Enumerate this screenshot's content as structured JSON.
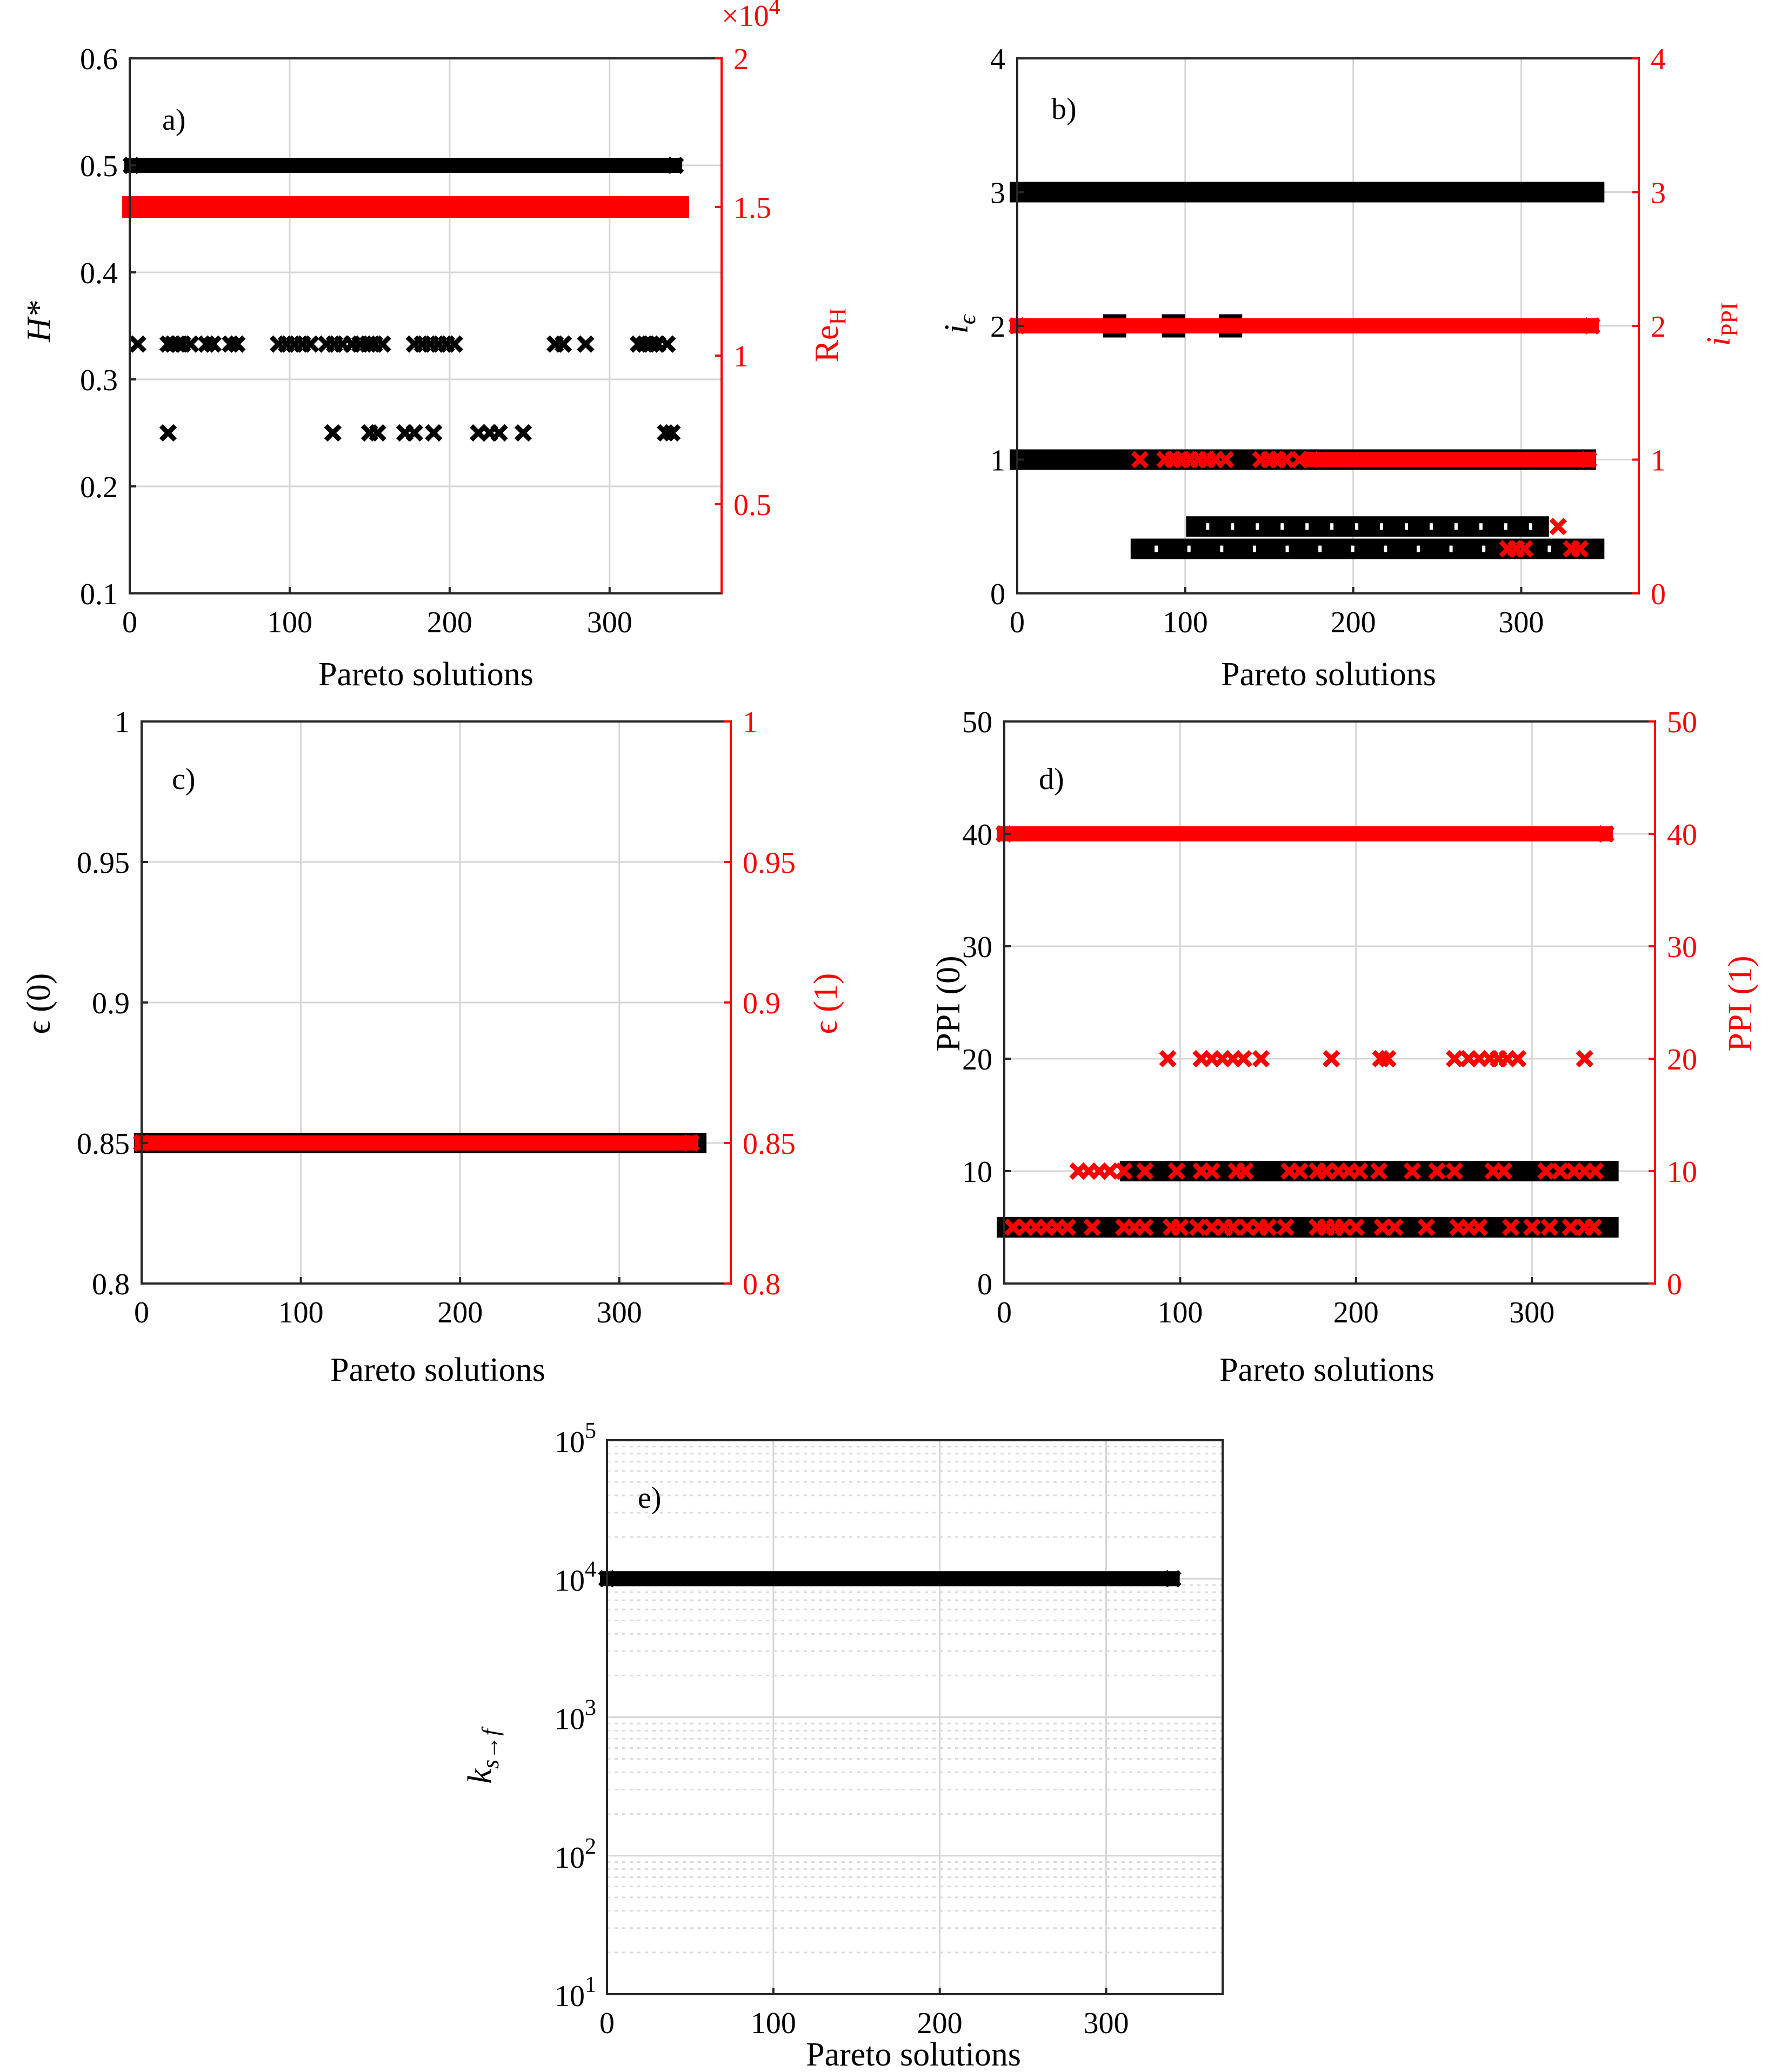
{
  "colors": {
    "primary": "#000000",
    "secondary": "#ff0000",
    "axis": "#262626",
    "grid": "#d6d6d6"
  },
  "figure": {
    "xlabel": "Pareto solutions"
  },
  "chart_data": [
    {
      "id": "a",
      "panel_label": "a)",
      "type": "scatter",
      "xlabel": "Pareto solutions",
      "xlim": [
        0,
        370
      ],
      "xticks": [
        "0",
        "100",
        "200",
        "300"
      ],
      "left_axis": {
        "label": "H*",
        "ylim": [
          0.1,
          0.6
        ],
        "ticks": [
          "0.1",
          "0.2",
          "0.3",
          "0.4",
          "0.5",
          "0.6"
        ]
      },
      "right_axis": {
        "label": "Re",
        "label_sub": "H",
        "ylim": [
          0.2,
          2
        ],
        "ticks": [
          "0.5",
          "1",
          "1.5",
          "2"
        ],
        "exponent_base": "×10",
        "exponent_power": "4"
      },
      "series": [
        {
          "name": "H*",
          "axis": "left",
          "marker": "x",
          "color": "black",
          "bands": [
            {
              "y": 0.5,
              "x0": 1,
              "x1": 341
            }
          ],
          "points": [
            {
              "x": 5,
              "y": 0.333
            },
            {
              "x": 24,
              "y": 0.333
            },
            {
              "x": 27,
              "y": 0.333
            },
            {
              "x": 30,
              "y": 0.333
            },
            {
              "x": 33,
              "y": 0.333
            },
            {
              "x": 38,
              "y": 0.333
            },
            {
              "x": 48,
              "y": 0.333
            },
            {
              "x": 52,
              "y": 0.333
            },
            {
              "x": 63,
              "y": 0.333
            },
            {
              "x": 67,
              "y": 0.333
            },
            {
              "x": 93,
              "y": 0.333
            },
            {
              "x": 98,
              "y": 0.333
            },
            {
              "x": 103,
              "y": 0.333
            },
            {
              "x": 108,
              "y": 0.333
            },
            {
              "x": 113,
              "y": 0.333
            },
            {
              "x": 123,
              "y": 0.333
            },
            {
              "x": 128,
              "y": 0.333
            },
            {
              "x": 133,
              "y": 0.333
            },
            {
              "x": 139,
              "y": 0.333
            },
            {
              "x": 144,
              "y": 0.333
            },
            {
              "x": 149,
              "y": 0.333
            },
            {
              "x": 153,
              "y": 0.333
            },
            {
              "x": 158,
              "y": 0.333
            },
            {
              "x": 178,
              "y": 0.333
            },
            {
              "x": 183,
              "y": 0.333
            },
            {
              "x": 188,
              "y": 0.333
            },
            {
              "x": 193,
              "y": 0.333
            },
            {
              "x": 198,
              "y": 0.333
            },
            {
              "x": 203,
              "y": 0.333
            },
            {
              "x": 266,
              "y": 0.333
            },
            {
              "x": 271,
              "y": 0.333
            },
            {
              "x": 285,
              "y": 0.333
            },
            {
              "x": 318,
              "y": 0.333
            },
            {
              "x": 322,
              "y": 0.333
            },
            {
              "x": 326,
              "y": 0.333
            },
            {
              "x": 330,
              "y": 0.333
            },
            {
              "x": 336,
              "y": 0.333
            },
            {
              "x": 24,
              "y": 0.25
            },
            {
              "x": 127,
              "y": 0.25
            },
            {
              "x": 150,
              "y": 0.25
            },
            {
              "x": 155,
              "y": 0.25
            },
            {
              "x": 172,
              "y": 0.25
            },
            {
              "x": 178,
              "y": 0.25
            },
            {
              "x": 190,
              "y": 0.25
            },
            {
              "x": 218,
              "y": 0.25
            },
            {
              "x": 225,
              "y": 0.25
            },
            {
              "x": 231,
              "y": 0.25
            },
            {
              "x": 246,
              "y": 0.25
            },
            {
              "x": 335,
              "y": 0.25
            },
            {
              "x": 339,
              "y": 0.25
            }
          ]
        },
        {
          "name": "Re_H",
          "axis": "right",
          "marker": "square",
          "color": "red",
          "bands": [
            {
              "y": 1.5,
              "x0": 0,
              "x1": 345
            }
          ],
          "points": []
        }
      ]
    },
    {
      "id": "b",
      "panel_label": "b)",
      "type": "scatter",
      "xlabel": "Pareto solutions",
      "xlim": [
        0,
        370
      ],
      "xticks": [
        "0",
        "100",
        "200",
        "300"
      ],
      "left_axis": {
        "label": "i",
        "label_sub": "ϵ",
        "ylim": [
          0,
          4
        ],
        "ticks": [
          "0",
          "1",
          "2",
          "3",
          "4"
        ]
      },
      "right_axis": {
        "label": "i",
        "label_sub": "PPI",
        "ylim": [
          0,
          4
        ],
        "ticks": [
          "0",
          "1",
          "2",
          "3",
          "4"
        ]
      },
      "series": [
        {
          "name": "i_eps",
          "axis": "left",
          "marker": "square",
          "color": "black",
          "bands": [
            {
              "y": 3,
              "x0": 0,
              "x1": 345
            },
            {
              "y": 1,
              "x0": 0,
              "x1": 340
            },
            {
              "y": 0.5,
              "x0": 105,
              "x1": 312
            },
            {
              "y": 0.333,
              "x0": 72,
              "x1": 345
            }
          ],
          "points": [
            {
              "x": 58,
              "y": 2
            },
            {
              "x": 93,
              "y": 2
            },
            {
              "x": 127,
              "y": 2
            }
          ]
        },
        {
          "name": "i_PPI",
          "axis": "right",
          "marker": "x",
          "color": "red",
          "bands": [
            {
              "y": 2,
              "x0": 0,
              "x1": 342
            },
            {
              "y": 1,
              "x0": 175,
              "x1": 340
            }
          ],
          "points": [
            {
              "x": 73,
              "y": 1
            },
            {
              "x": 88,
              "y": 1
            },
            {
              "x": 93,
              "y": 1
            },
            {
              "x": 98,
              "y": 1
            },
            {
              "x": 103,
              "y": 1
            },
            {
              "x": 108,
              "y": 1
            },
            {
              "x": 113,
              "y": 1
            },
            {
              "x": 118,
              "y": 1
            },
            {
              "x": 124,
              "y": 1
            },
            {
              "x": 145,
              "y": 1
            },
            {
              "x": 150,
              "y": 1
            },
            {
              "x": 155,
              "y": 1
            },
            {
              "x": 160,
              "y": 1
            },
            {
              "x": 168,
              "y": 1
            },
            {
              "x": 292,
              "y": 0.333
            },
            {
              "x": 297,
              "y": 0.333
            },
            {
              "x": 302,
              "y": 0.333
            },
            {
              "x": 330,
              "y": 0.333
            },
            {
              "x": 335,
              "y": 0.333
            },
            {
              "x": 322,
              "y": 0.5
            }
          ]
        }
      ]
    },
    {
      "id": "c",
      "panel_label": "c)",
      "type": "scatter",
      "xlabel": "Pareto solutions",
      "xlim": [
        0,
        370
      ],
      "xticks": [
        "0",
        "100",
        "200",
        "300"
      ],
      "left_axis": {
        "label": "ϵ (0)",
        "ylim": [
          0.8,
          1
        ],
        "ticks": [
          "0.8",
          "0.85",
          "0.9",
          "0.95",
          "1"
        ]
      },
      "right_axis": {
        "label": "ϵ (1)",
        "ylim": [
          0.8,
          1
        ],
        "ticks": [
          "0.8",
          "0.85",
          "0.9",
          "0.95",
          "1"
        ]
      },
      "series": [
        {
          "name": "eps0",
          "axis": "left",
          "marker": "square",
          "color": "black",
          "bands": [
            {
              "y": 0.85,
              "x0": 0,
              "x1": 350
            }
          ],
          "points": []
        },
        {
          "name": "eps1",
          "axis": "right",
          "marker": "x",
          "color": "red",
          "bands": [
            {
              "y": 0.85,
              "x0": 0,
              "x1": 345
            }
          ],
          "points": []
        }
      ]
    },
    {
      "id": "d",
      "panel_label": "d)",
      "type": "scatter",
      "xlabel": "Pareto solutions",
      "xlim": [
        0,
        370
      ],
      "xticks": [
        "0",
        "100",
        "200",
        "300"
      ],
      "left_axis": {
        "label": "PPI (0)",
        "ylim": [
          0,
          50
        ],
        "ticks": [
          "0",
          "10",
          "20",
          "30",
          "40",
          "50"
        ]
      },
      "right_axis": {
        "label": "PPI (1)",
        "ylim": [
          0,
          50
        ],
        "ticks": [
          "0",
          "10",
          "20",
          "30",
          "40",
          "50"
        ]
      },
      "series": [
        {
          "name": "PPI0",
          "axis": "left",
          "marker": "square",
          "color": "black",
          "bands": [
            {
              "y": 5,
              "x0": 0,
              "x1": 345
            },
            {
              "y": 10,
              "x0": 70,
              "x1": 345
            }
          ],
          "points": []
        },
        {
          "name": "PPI1",
          "axis": "right",
          "marker": "x",
          "color": "red",
          "bands": [
            {
              "y": 40,
              "x0": 0,
              "x1": 342
            }
          ],
          "points": [
            {
              "x": 5,
              "y": 5
            },
            {
              "x": 12,
              "y": 5
            },
            {
              "x": 18,
              "y": 5
            },
            {
              "x": 24,
              "y": 5
            },
            {
              "x": 30,
              "y": 5
            },
            {
              "x": 36,
              "y": 5
            },
            {
              "x": 50,
              "y": 5
            },
            {
              "x": 68,
              "y": 5
            },
            {
              "x": 74,
              "y": 5
            },
            {
              "x": 80,
              "y": 5
            },
            {
              "x": 95,
              "y": 5
            },
            {
              "x": 100,
              "y": 5
            },
            {
              "x": 110,
              "y": 5
            },
            {
              "x": 118,
              "y": 5
            },
            {
              "x": 125,
              "y": 5
            },
            {
              "x": 130,
              "y": 5
            },
            {
              "x": 138,
              "y": 5
            },
            {
              "x": 145,
              "y": 5
            },
            {
              "x": 150,
              "y": 5
            },
            {
              "x": 160,
              "y": 5
            },
            {
              "x": 178,
              "y": 5
            },
            {
              "x": 183,
              "y": 5
            },
            {
              "x": 188,
              "y": 5
            },
            {
              "x": 193,
              "y": 5
            },
            {
              "x": 200,
              "y": 5
            },
            {
              "x": 215,
              "y": 5
            },
            {
              "x": 222,
              "y": 5
            },
            {
              "x": 240,
              "y": 5
            },
            {
              "x": 258,
              "y": 5
            },
            {
              "x": 264,
              "y": 5
            },
            {
              "x": 270,
              "y": 5
            },
            {
              "x": 288,
              "y": 5
            },
            {
              "x": 300,
              "y": 5
            },
            {
              "x": 310,
              "y": 5
            },
            {
              "x": 322,
              "y": 5
            },
            {
              "x": 330,
              "y": 5
            },
            {
              "x": 335,
              "y": 5
            },
            {
              "x": 42,
              "y": 10
            },
            {
              "x": 48,
              "y": 10
            },
            {
              "x": 54,
              "y": 10
            },
            {
              "x": 60,
              "y": 10
            },
            {
              "x": 68,
              "y": 10
            },
            {
              "x": 80,
              "y": 10
            },
            {
              "x": 98,
              "y": 10
            },
            {
              "x": 112,
              "y": 10
            },
            {
              "x": 118,
              "y": 10
            },
            {
              "x": 132,
              "y": 10
            },
            {
              "x": 137,
              "y": 10
            },
            {
              "x": 162,
              "y": 10
            },
            {
              "x": 168,
              "y": 10
            },
            {
              "x": 178,
              "y": 10
            },
            {
              "x": 183,
              "y": 10
            },
            {
              "x": 190,
              "y": 10
            },
            {
              "x": 196,
              "y": 10
            },
            {
              "x": 202,
              "y": 10
            },
            {
              "x": 213,
              "y": 10
            },
            {
              "x": 232,
              "y": 10
            },
            {
              "x": 246,
              "y": 10
            },
            {
              "x": 256,
              "y": 10
            },
            {
              "x": 278,
              "y": 10
            },
            {
              "x": 284,
              "y": 10
            },
            {
              "x": 308,
              "y": 10
            },
            {
              "x": 316,
              "y": 10
            },
            {
              "x": 324,
              "y": 10
            },
            {
              "x": 330,
              "y": 10
            },
            {
              "x": 336,
              "y": 10
            },
            {
              "x": 93,
              "y": 20
            },
            {
              "x": 112,
              "y": 20
            },
            {
              "x": 118,
              "y": 20
            },
            {
              "x": 124,
              "y": 20
            },
            {
              "x": 130,
              "y": 20
            },
            {
              "x": 136,
              "y": 20
            },
            {
              "x": 146,
              "y": 20
            },
            {
              "x": 186,
              "y": 20
            },
            {
              "x": 214,
              "y": 20
            },
            {
              "x": 218,
              "y": 20
            },
            {
              "x": 256,
              "y": 20
            },
            {
              "x": 264,
              "y": 20
            },
            {
              "x": 270,
              "y": 20
            },
            {
              "x": 276,
              "y": 20
            },
            {
              "x": 281,
              "y": 20
            },
            {
              "x": 286,
              "y": 20
            },
            {
              "x": 292,
              "y": 20
            },
            {
              "x": 330,
              "y": 20
            }
          ]
        }
      ]
    },
    {
      "id": "e",
      "panel_label": "e)",
      "type": "scatter",
      "xlabel": "Pareto solutions",
      "xlim": [
        0,
        370
      ],
      "xticks": [
        "0",
        "100",
        "200",
        "300"
      ],
      "left_axis": {
        "label": "k",
        "label_sub": "s→f",
        "scale": "log",
        "ylim": [
          10,
          100000
        ],
        "ticks": [
          {
            "base": "10",
            "exp": "1",
            "value": 10
          },
          {
            "base": "10",
            "exp": "2",
            "value": 100
          },
          {
            "base": "10",
            "exp": "3",
            "value": 1000
          },
          {
            "base": "10",
            "exp": "4",
            "value": 10000
          },
          {
            "base": "10",
            "exp": "5",
            "value": 100000
          }
        ]
      },
      "series": [
        {
          "name": "k_sf",
          "axis": "left",
          "marker": "x",
          "color": "black",
          "bands": [
            {
              "y": 10000,
              "x0": 0,
              "x1": 340
            }
          ],
          "points": []
        }
      ]
    }
  ]
}
